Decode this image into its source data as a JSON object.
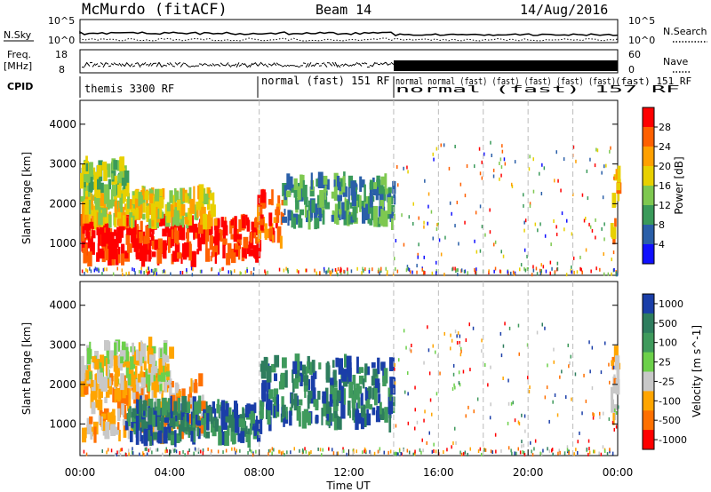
{
  "header": {
    "title": "McMurdo (fitACF)",
    "beam": "Beam 14",
    "date": "14/Aug/2016"
  },
  "param_panels": {
    "nsky_label": "N.Sky",
    "nsky_ticks": [
      "10^5",
      "10^0"
    ],
    "nsearch_label": "N.Search",
    "nsearch_ticks": [
      "10^5",
      "10^0"
    ],
    "freq_label": [
      "Freq.",
      "[MHz]"
    ],
    "freq_ticks": [
      "18",
      "8"
    ],
    "nave_label": "Nave",
    "nave_ticks": [
      "60",
      "0"
    ],
    "cpid_label": "CPID",
    "cpid_entries": [
      "themis 3300 RF",
      "normal (fast) 151 RF",
      "normal (fast) 157 RF",
      "(fast) 151 RF"
    ],
    "cpid_overlap_text": "normal normal (fast) (fast) (fast) (fast) (fast)"
  },
  "chart_data": [
    {
      "type": "heatmap",
      "name": "power",
      "ylabel": "Slant Range [km]",
      "ylim": [
        200,
        4600
      ],
      "yticks": [
        1000,
        2000,
        3000,
        4000
      ],
      "colorbar_label": "Power [dB]",
      "colorbar_ticks": [
        "28",
        "24",
        "20",
        "16",
        "12",
        "8",
        "4"
      ],
      "colorbar_colors": [
        "#ff0000",
        "#ff6000",
        "#ffa000",
        "#e8d000",
        "#7ec850",
        "#3a9a5a",
        "#2a5fa8",
        "#1010ff"
      ],
      "blobs": [
        {
          "t0": 0.0,
          "t1": 7.9,
          "r0": 600,
          "r1": 1600,
          "cls": 0
        },
        {
          "t0": 0.0,
          "t1": 6.0,
          "r0": 1500,
          "r1": 2300,
          "cls": 3
        },
        {
          "t0": 7.9,
          "t1": 9.0,
          "r0": 1000,
          "r1": 2200,
          "cls": 1
        },
        {
          "t0": 9.0,
          "t1": 14.0,
          "r0": 1500,
          "r1": 2600,
          "cls": 5
        },
        {
          "t0": 0.0,
          "t1": 2.0,
          "r0": 2300,
          "r1": 3000,
          "cls": 4
        },
        {
          "t0": 23.6,
          "t1": 24.0,
          "r0": 900,
          "r1": 2800,
          "cls": 2
        }
      ]
    },
    {
      "type": "heatmap",
      "name": "velocity",
      "xlabel": "Time UT",
      "ylabel": "Slant Range [km]",
      "ylim": [
        200,
        4600
      ],
      "yticks": [
        1000,
        2000,
        3000,
        4000
      ],
      "xticks": [
        "00:00",
        "04:00",
        "08:00",
        "12:00",
        "16:00",
        "20:00",
        "00:00"
      ],
      "xlim_hours": [
        0,
        24
      ],
      "colorbar_label": "Velocity [m s^-1]",
      "colorbar_ticks": [
        "1000",
        "500",
        "100",
        "25",
        "-25",
        "-100",
        "-500",
        "-1000"
      ],
      "colorbar_colors": [
        "#1a3ea8",
        "#2e7d5e",
        "#3f9a5c",
        "#6cd04a",
        "#c8c8c8",
        "#ffa500",
        "#ff7000",
        "#ff0000"
      ],
      "blobs": [
        {
          "t0": 0.0,
          "t1": 5.5,
          "r0": 700,
          "r1": 2200,
          "cls": 5
        },
        {
          "t0": 2.0,
          "t1": 8.0,
          "r0": 600,
          "r1": 1500,
          "cls": 1
        },
        {
          "t0": 8.0,
          "t1": 14.0,
          "r0": 1000,
          "r1": 2600,
          "cls": 1
        },
        {
          "t0": 0.0,
          "t1": 4.0,
          "r0": 2000,
          "r1": 3000,
          "cls": 4
        },
        {
          "t0": 23.6,
          "t1": 24.0,
          "r0": 900,
          "r1": 2800,
          "cls": 5
        }
      ]
    }
  ]
}
